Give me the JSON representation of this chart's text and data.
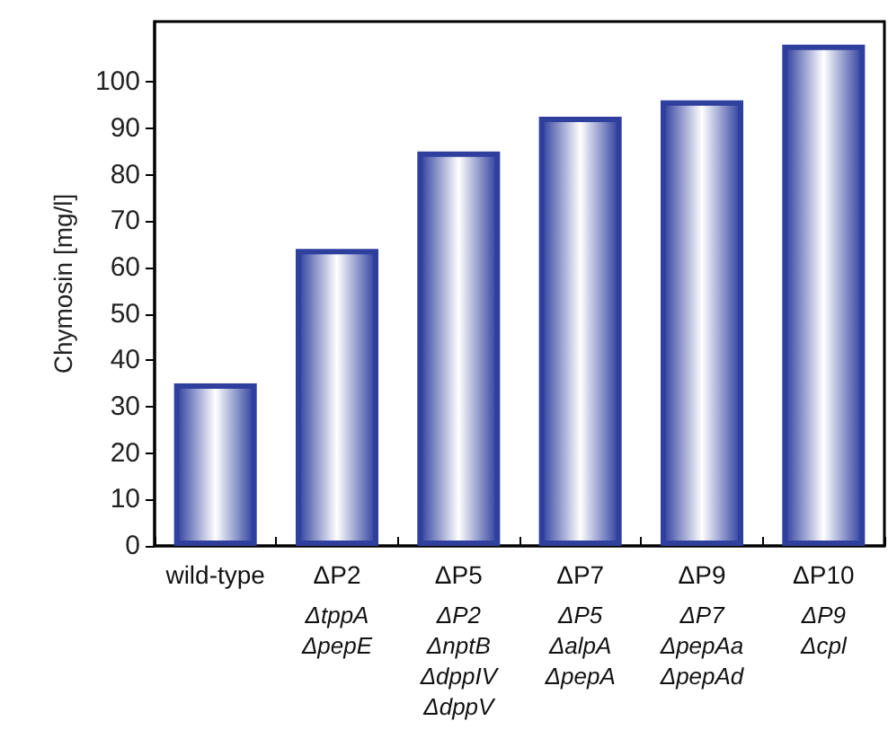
{
  "chart_data": {
    "type": "bar",
    "ylabel": "Chymosin [mg/l]",
    "categories": [
      "wild-type",
      "ΔP2\nΔtppA\nΔpepE",
      "ΔP5\nΔP2\nΔnptB\nΔdppIV\nΔdppV",
      "ΔP7\nΔP5\nΔalpA\nΔpepA",
      "ΔP9\nΔP7\nΔpepAa\nΔpepAd",
      "ΔP10\nΔP9\nΔcpl"
    ],
    "values": [
      35,
      64,
      85,
      92.5,
      96,
      108
    ],
    "color": "#2f3f9e",
    "ylim": [
      0,
      113
    ],
    "yticks": [
      0,
      10,
      20,
      30,
      40,
      50,
      60,
      70,
      80,
      90,
      100
    ],
    "grid": false
  }
}
